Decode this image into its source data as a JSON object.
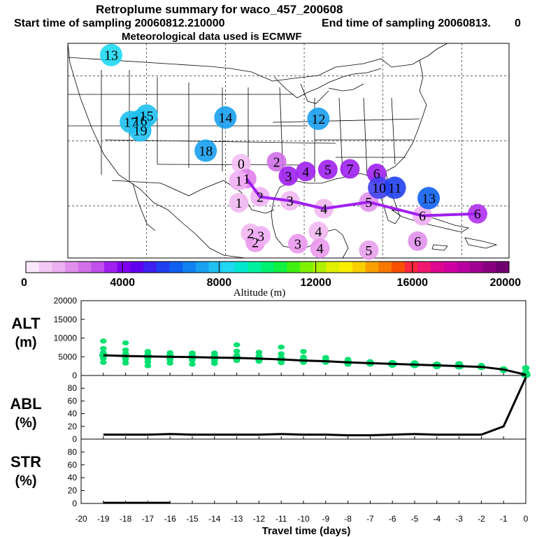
{
  "title": {
    "line1": "Retroplume summary for waco_457_200608",
    "line2_start": "Start time of sampling 20060812.210000",
    "line2_end": "End time of sampling 20060813.",
    "line2_tail": "0",
    "line3": "Meteorological data used is ECMWF"
  },
  "colors": {
    "trajectory": "#a020f0",
    "alt_points": "#00e070",
    "line": "#000000"
  },
  "map": {
    "labels": [
      {
        "text": "0",
        "c": "#f4c0f4",
        "lon": -98.0,
        "lat": 31.5
      },
      {
        "text": "1",
        "c": "#e080ec",
        "lon": -97.3,
        "lat": 29.2
      },
      {
        "text": "1",
        "c": "#f0b0f4",
        "lon": -98.3,
        "lat": 28.9
      },
      {
        "text": "1",
        "c": "#f2b8f2",
        "lon": -98.3,
        "lat": 25.5
      },
      {
        "text": "2",
        "c": "#f0b0f4",
        "lon": -95.6,
        "lat": 26.4
      },
      {
        "text": "2",
        "c": "#d070e8",
        "lon": -93.5,
        "lat": 31.8
      },
      {
        "text": "2",
        "c": "#f2b8f2",
        "lon": -96.8,
        "lat": 20.8
      },
      {
        "text": "2",
        "c": "#ea98ec",
        "lon": -96.2,
        "lat": 19.4
      },
      {
        "text": "3",
        "c": "#a020f0",
        "lon": -92.0,
        "lat": 29.6
      },
      {
        "text": "3",
        "c": "#f2b8f2",
        "lon": -91.8,
        "lat": 25.8
      },
      {
        "text": "3",
        "c": "#f0b0f4",
        "lon": -95.5,
        "lat": 20.4
      },
      {
        "text": "3",
        "c": "#ea98ec",
        "lon": -90.8,
        "lat": 19.2
      },
      {
        "text": "4",
        "c": "#a020f0",
        "lon": -89.8,
        "lat": 30.3
      },
      {
        "text": "4",
        "c": "#f2b8f2",
        "lon": -87.5,
        "lat": 24.6
      },
      {
        "text": "4",
        "c": "#f2b8f2",
        "lon": -88.2,
        "lat": 21.1
      },
      {
        "text": "4",
        "c": "#ea98ec",
        "lon": -88.0,
        "lat": 18.5
      },
      {
        "text": "5",
        "c": "#a020f0",
        "lon": -87.0,
        "lat": 30.6
      },
      {
        "text": "5",
        "c": "#e090ec",
        "lon": -81.8,
        "lat": 25.6
      },
      {
        "text": "5",
        "c": "#e8a0ec",
        "lon": -81.8,
        "lat": 18.2
      },
      {
        "text": "6",
        "c": "#a020f0",
        "lon": -80.8,
        "lat": 30.0
      },
      {
        "text": "6",
        "c": "#f0b0f4",
        "lon": -75.0,
        "lat": 23.5
      },
      {
        "text": "6",
        "c": "#e090ec",
        "lon": -75.6,
        "lat": 19.6
      },
      {
        "text": "6",
        "c": "#b030f0",
        "lon": -68.0,
        "lat": 23.8
      },
      {
        "text": "7",
        "c": "#a020f0",
        "lon": -84.2,
        "lat": 30.7
      },
      {
        "text": "10",
        "c": "#4040f0",
        "lon": -80.5,
        "lat": 27.8
      },
      {
        "text": "11",
        "c": "#2040f0",
        "lon": -78.5,
        "lat": 27.8
      },
      {
        "text": "13",
        "c": "#1060f0",
        "lon": -74.2,
        "lat": 26.2
      },
      {
        "text": "13",
        "c": "#20d8f0",
        "lon": -114.5,
        "lat": 48.2
      },
      {
        "text": "14",
        "c": "#18a0f0",
        "lon": -100.0,
        "lat": 38.6
      },
      {
        "text": "15",
        "c": "#20c0f0",
        "lon": -110.0,
        "lat": 38.9
      },
      {
        "text": "16",
        "c": "#20c0f0",
        "lon": -110.8,
        "lat": 38.1
      },
      {
        "text": "17",
        "c": "#20c0f0",
        "lon": -112.0,
        "lat": 37.9
      },
      {
        "text": "18",
        "c": "#18a0f0",
        "lon": -102.5,
        "lat": 33.5
      },
      {
        "text": "19",
        "c": "#20c0f0",
        "lon": -110.8,
        "lat": 36.6
      },
      {
        "text": "12",
        "c": "#18a0f0",
        "lon": -88.2,
        "lat": 38.4
      }
    ]
  },
  "colorbar": {
    "tick_labels": [
      "0",
      "4000",
      "8000",
      "12000",
      "16000",
      "20000"
    ],
    "title": "Altitude (m)",
    "colors": [
      "#fce8fc",
      "#f4c8f4",
      "#ecb0f0",
      "#e090ec",
      "#d070e8",
      "#c050ec",
      "#a020f0",
      "#8000f0",
      "#6000f0",
      "#4020f0",
      "#2040f0",
      "#1060f0",
      "#1080f0",
      "#18a0f0",
      "#20c0f0",
      "#20d8f0",
      "#00e8d0",
      "#00f0a0",
      "#00f070",
      "#10f040",
      "#40f010",
      "#80f000",
      "#b0f000",
      "#e0f000",
      "#f8f000",
      "#f8d000",
      "#f8a000",
      "#f87800",
      "#f85000",
      "#f82840",
      "#f01870",
      "#e00890",
      "#d000a0",
      "#b800a0",
      "#a00090",
      "#880080",
      "#700070"
    ]
  },
  "xaxis": {
    "label": "Travel time (days)",
    "ticks": [
      "-20",
      "-19",
      "-18",
      "-17",
      "-16",
      "-15",
      "-14",
      "-13",
      "-12",
      "-11",
      "-10",
      "-9",
      "-8",
      "-7",
      "-6",
      "-5",
      "-4",
      "-3",
      "-2",
      "-1",
      "0"
    ]
  },
  "chart_data": [
    {
      "type": "scatter",
      "name": "ALT",
      "ylabel": "ALT",
      "yunit": "(m)",
      "ylim": [
        0,
        20000
      ],
      "xlim": [
        -20,
        0
      ],
      "yticks": [
        "0",
        "5000",
        "10000",
        "15000",
        "20000"
      ],
      "x": [
        -19,
        -18,
        -17,
        -16,
        -15,
        -14,
        -13,
        -12,
        -11,
        -10,
        -9,
        -8,
        -7,
        -6,
        -5,
        -4,
        -3,
        -2,
        -1,
        0
      ],
      "mean": [
        5400,
        5200,
        5100,
        5000,
        4900,
        4800,
        4700,
        4500,
        4300,
        4000,
        3800,
        3500,
        3300,
        3100,
        2900,
        2700,
        2500,
        2300,
        1600,
        200
      ],
      "spread": [
        [
          9200,
          7200,
          6100,
          5200,
          4600,
          3500
        ],
        [
          8700,
          6800,
          5800,
          5000,
          4300,
          3300
        ],
        [
          6400,
          5700,
          5000,
          4400,
          3600,
          2600
        ],
        [
          6100,
          5500,
          4800,
          4200,
          3300
        ],
        [
          6000,
          5400,
          4700,
          4100,
          3000
        ],
        [
          6000,
          5300,
          4600,
          3900,
          3200
        ],
        [
          8200,
          6500,
          5400,
          4800,
          4000
        ],
        [
          6200,
          5200,
          4400,
          3800
        ],
        [
          7600,
          5800,
          4800,
          4200,
          3400
        ],
        [
          6400,
          4900,
          4200,
          3500
        ],
        [
          4800,
          4100,
          3500
        ],
        [
          4300,
          3700,
          3000
        ],
        [
          3700,
          3000
        ],
        [
          3400,
          2800
        ],
        [
          3300,
          2700
        ],
        [
          3000,
          2400
        ],
        [
          3100,
          2500
        ],
        [
          2700,
          2100
        ],
        [
          1800,
          1300
        ],
        [
          2000,
          800
        ]
      ],
      "sizes": [
        8,
        8,
        8,
        8,
        8,
        8,
        8,
        8,
        8,
        8,
        8,
        8,
        8,
        9,
        9,
        9,
        9,
        8,
        8,
        9
      ]
    },
    {
      "type": "line",
      "name": "ABL",
      "ylabel": "ABL",
      "yunit": "(%)",
      "ylim": [
        0,
        100
      ],
      "xlim": [
        -20,
        0
      ],
      "yticks": [
        "0",
        "20",
        "40",
        "60",
        "80"
      ],
      "x": [
        -19,
        -18,
        -17,
        -16,
        -15,
        -14,
        -13,
        -12,
        -11,
        -10,
        -9,
        -8,
        -7,
        -6,
        -5,
        -4,
        -3,
        -2,
        -1,
        0
      ],
      "values": [
        7,
        7,
        7,
        8,
        7,
        7,
        7,
        7,
        8,
        7,
        7,
        6,
        6,
        7,
        8,
        7,
        7,
        7,
        20,
        97
      ]
    },
    {
      "type": "line",
      "name": "STR",
      "ylabel": "STR",
      "yunit": "(%)",
      "ylim": [
        0,
        100
      ],
      "xlim": [
        -20,
        0
      ],
      "yticks": [
        "0",
        "20",
        "40",
        "60",
        "80"
      ],
      "x": [
        -19,
        -18,
        -17,
        -16
      ],
      "values": [
        1,
        1,
        1,
        1
      ]
    }
  ]
}
